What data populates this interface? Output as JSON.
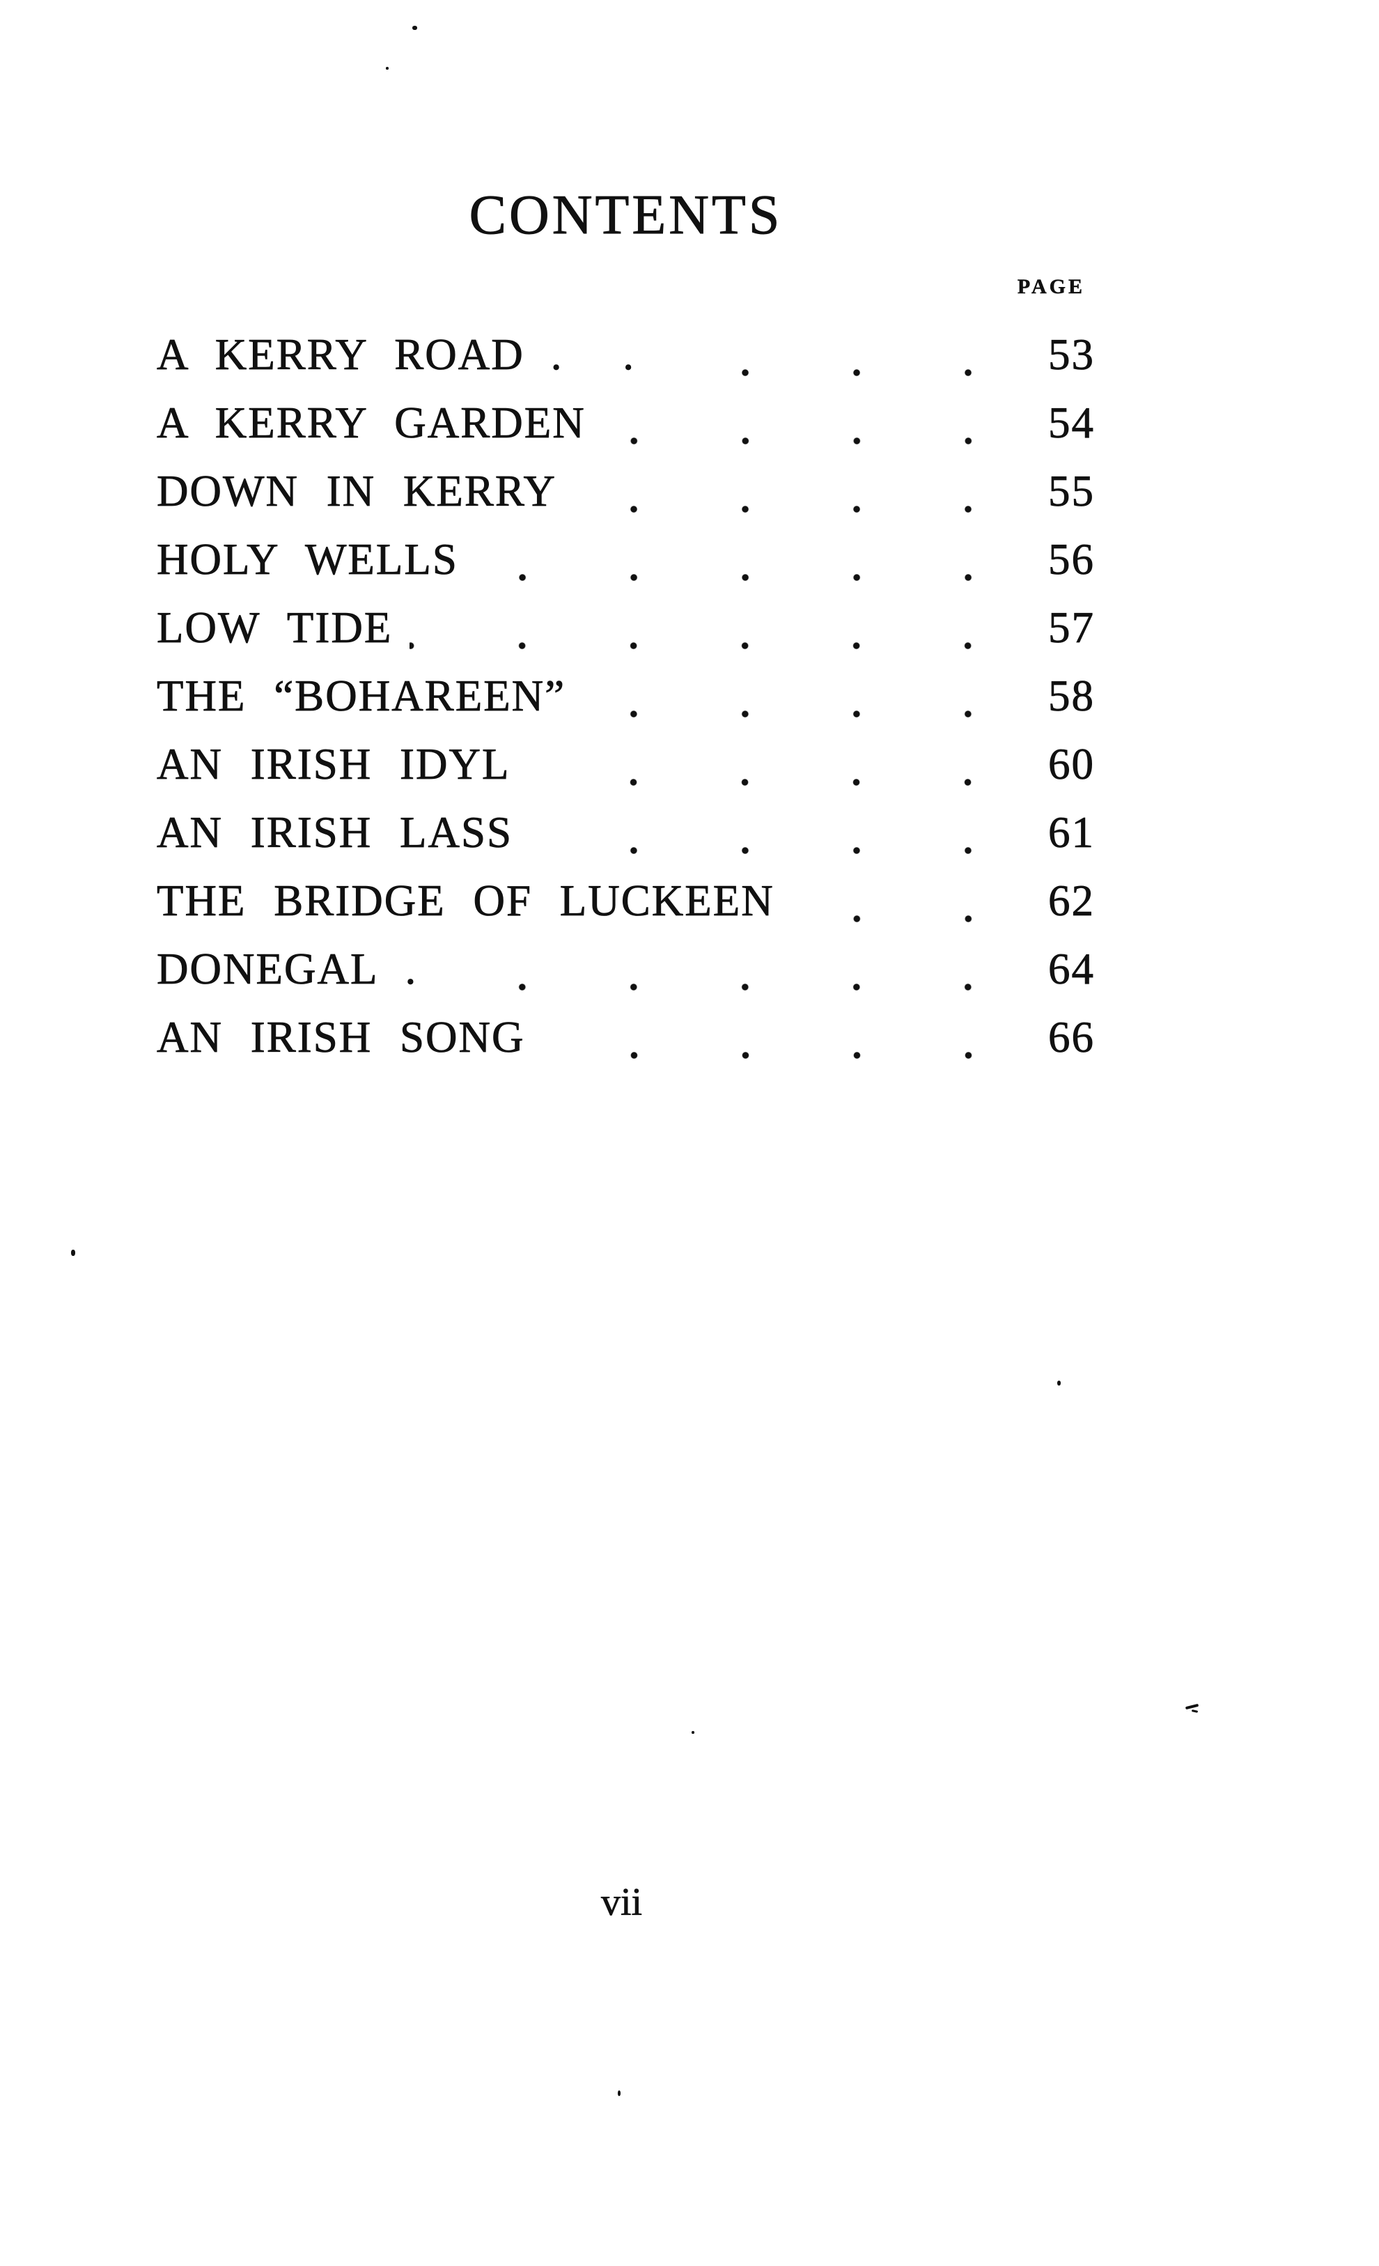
{
  "page": {
    "title": "CONTENTS",
    "column_header": "PAGE",
    "folio": "vii",
    "ink_color": "#111111",
    "paper_color": "#ffffff",
    "entries": [
      {
        "title": "A KERRY ROAD",
        "suffix": ". .",
        "page": "53"
      },
      {
        "title": "A KERRY GARDEN",
        "suffix": "",
        "page": "54"
      },
      {
        "title": "DOWN IN KERRY",
        "suffix": "",
        "page": "55"
      },
      {
        "title": "HOLY WELLS",
        "suffix": "",
        "page": "56"
      },
      {
        "title": "LOW TIDE",
        "suffix": "",
        "page": "57"
      },
      {
        "title": "THE “BOHAREEN”",
        "suffix": "",
        "page": "58"
      },
      {
        "title": "AN IRISH IDYL",
        "suffix": "",
        "page": "60"
      },
      {
        "title": "AN IRISH LASS",
        "suffix": "",
        "page": "61"
      },
      {
        "title": "THE BRIDGE OF LUCKEEN",
        "suffix": "",
        "page": "62"
      },
      {
        "title": "DONEGAL",
        "suffix": ".",
        "page": "64"
      },
      {
        "title": "AN IRISH SONG",
        "suffix": "",
        "page": "66"
      }
    ]
  }
}
